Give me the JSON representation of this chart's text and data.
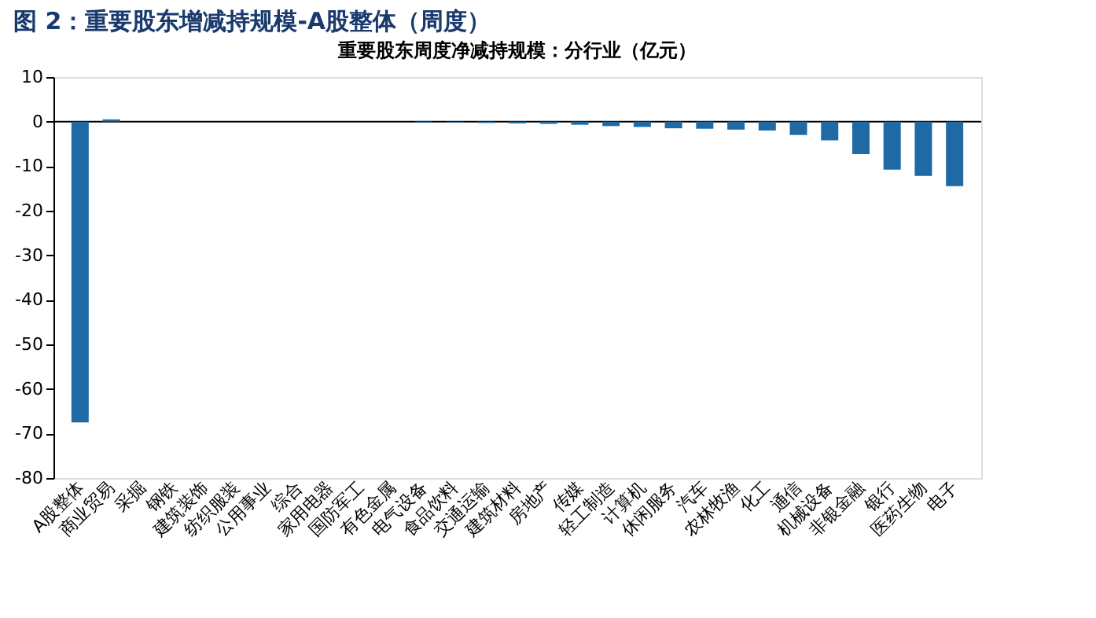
{
  "chart_data": {
    "type": "bar",
    "title": "图 2：重要股东增减持规模-A股整体（周度）",
    "subtitle": "重要股东周度净减持规模：分行业（亿元）",
    "categories": [
      "A股整体",
      "商业贸易",
      "采掘",
      "钢铁",
      "建筑装饰",
      "纺织服装",
      "公用事业",
      "综合",
      "家用电器",
      "国防军工",
      "有色金属",
      "电气设备",
      "食品饮料",
      "交通运输",
      "建筑材料",
      "房地产",
      "传媒",
      "轻工制造",
      "计算机",
      "休闲服务",
      "汽车",
      "农林牧渔",
      "化工",
      "通信",
      "机械设备",
      "非银金融",
      "银行",
      "医药生物",
      "电子"
    ],
    "values": [
      -67.5,
      0.5,
      0,
      0,
      0,
      0,
      0,
      0,
      0,
      0,
      0,
      -0.2,
      -0.2,
      -0.3,
      -0.4,
      -0.5,
      -0.7,
      -1.0,
      -1.2,
      -1.5,
      -1.6,
      -1.8,
      -2.0,
      -3.0,
      -4.2,
      -7.3,
      -10.8,
      -12.2,
      -14.5
    ],
    "color": "#1f6aa5",
    "ylim": [
      -80,
      10
    ],
    "yticks": [
      -80,
      -70,
      -60,
      -50,
      -40,
      -30,
      -20,
      -10,
      0,
      10
    ],
    "ref_lines": [
      {
        "axis": "y",
        "value": 0,
        "color": "#000000"
      }
    ],
    "grid": false
  }
}
